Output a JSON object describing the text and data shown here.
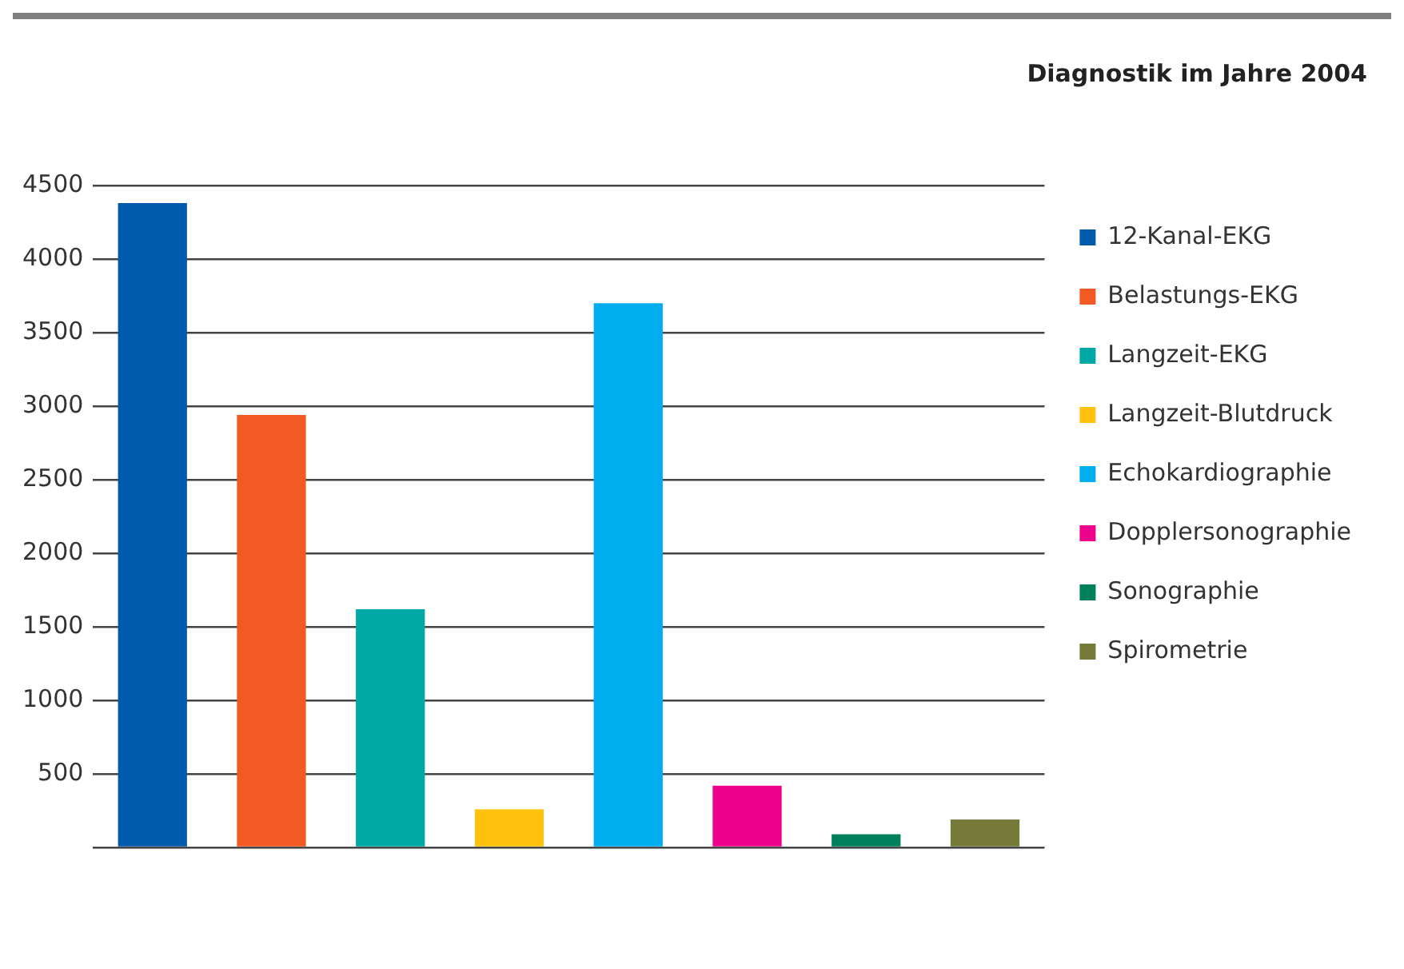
{
  "chart_data": {
    "type": "bar",
    "title": "Diagnostik im Jahre 2004",
    "categories": [
      null,
      null,
      null,
      null,
      null,
      null,
      null,
      null
    ],
    "series": [
      {
        "name": "12-Kanal-EKG",
        "color": "#005aab",
        "values": [
          4380,
          null,
          null,
          null,
          null,
          null,
          null,
          null
        ]
      },
      {
        "name": "Belastungs-EKG",
        "color": "#f15a22",
        "values": [
          null,
          2940,
          null,
          null,
          null,
          null,
          null,
          null
        ]
      },
      {
        "name": "Langzeit-EKG",
        "color": "#00a9a5",
        "values": [
          null,
          null,
          1620,
          null,
          null,
          null,
          null,
          null
        ]
      },
      {
        "name": "Langzeit-Blutdruck",
        "color": "#ffc20e",
        "values": [
          null,
          null,
          null,
          260,
          null,
          null,
          null,
          null
        ]
      },
      {
        "name": "Echokardiographie",
        "color": "#00aeef",
        "values": [
          null,
          null,
          null,
          null,
          3700,
          null,
          null,
          null
        ]
      },
      {
        "name": "Dopplersonographie",
        "color": "#ec008c",
        "values": [
          null,
          null,
          null,
          null,
          null,
          420,
          null,
          null
        ]
      },
      {
        "name": "Sonographie",
        "color": "#00805a",
        "values": [
          null,
          null,
          null,
          null,
          null,
          null,
          90,
          null
        ]
      },
      {
        "name": "Spirometrie",
        "color": "#767a38",
        "values": [
          null,
          null,
          null,
          null,
          null,
          null,
          null,
          190
        ]
      }
    ],
    "ylim": [
      0,
      4500
    ],
    "yticks": [
      {
        "value": 0,
        "label": null
      },
      500,
      1000,
      1500,
      2000,
      2500,
      3000,
      3500,
      4000,
      4500
    ],
    "grid": "y",
    "legend": "right",
    "tick_labels": "y"
  }
}
